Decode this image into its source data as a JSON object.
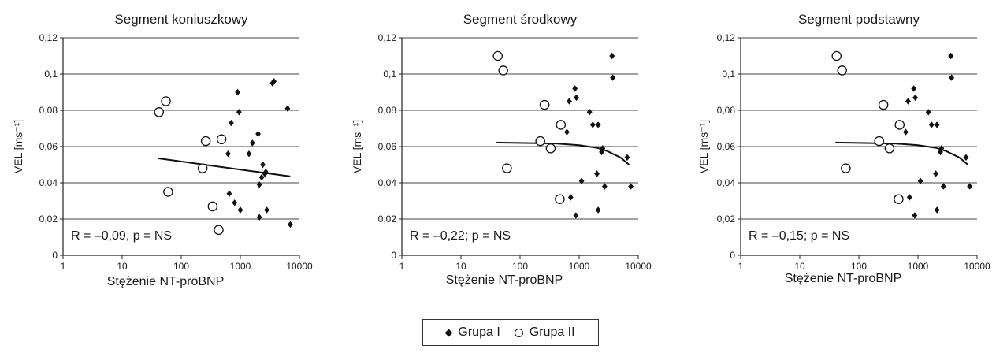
{
  "chart_data": [
    {
      "type": "scatter",
      "title": "Segment koniuszkowy",
      "xlabel": "Stężenie NT-proBNP",
      "ylabel": "VEL [ms⁻¹]",
      "xscale": "log",
      "xlim": [
        1,
        10000
      ],
      "ylim": [
        0,
        0.12
      ],
      "xticks": [
        "1",
        "10",
        "100",
        "1000",
        "10000"
      ],
      "yticks": [
        "0",
        "0,02",
        "0,04",
        "0,06",
        "0,08",
        "0,1",
        "0,12"
      ],
      "grid": "horizontal",
      "annotation": "R = –0,09, p = NS",
      "series": [
        {
          "name": "Grupa I",
          "marker": "diamond",
          "points": [
            [
              650,
              0.034
            ],
            [
              900,
              0.09
            ],
            [
              950,
              0.079
            ],
            [
              800,
              0.029
            ],
            [
              1000,
              0.025
            ],
            [
              620,
              0.056
            ],
            [
              700,
              0.073
            ],
            [
              1400,
              0.056
            ],
            [
              1600,
              0.062
            ],
            [
              2000,
              0.067
            ],
            [
              2100,
              0.039
            ],
            [
              2300,
              0.043
            ],
            [
              2400,
              0.05
            ],
            [
              2600,
              0.045
            ],
            [
              2700,
              0.046
            ],
            [
              2100,
              0.021
            ],
            [
              2800,
              0.025
            ],
            [
              3500,
              0.095
            ],
            [
              3700,
              0.096
            ],
            [
              6300,
              0.081
            ],
            [
              7000,
              0.017
            ]
          ]
        },
        {
          "name": "Grupa II",
          "marker": "circle",
          "points": [
            [
              42,
              0.079
            ],
            [
              55,
              0.085
            ],
            [
              60,
              0.035
            ],
            [
              230,
              0.048
            ],
            [
              260,
              0.063
            ],
            [
              340,
              0.027
            ],
            [
              430,
              0.014
            ],
            [
              480,
              0.064
            ]
          ]
        }
      ],
      "trend": [
        [
          40,
          0.0535
        ],
        [
          7000,
          0.0435
        ]
      ]
    },
    {
      "type": "scatter",
      "title": "Segment środkowy",
      "xlabel": "Stężenie NT-proBNP",
      "ylabel": "VEL [ms⁻¹]",
      "xscale": "log",
      "xlim": [
        1,
        10000
      ],
      "ylim": [
        0,
        0.12
      ],
      "xticks": [
        "1",
        "10",
        "100",
        "1000",
        "10000"
      ],
      "yticks": [
        "0",
        "0,02",
        "0,04",
        "0,06",
        "0,08",
        "0,1",
        "0,12"
      ],
      "grid": "horizontal",
      "annotation": "R = –0,22; p = NS",
      "series": [
        {
          "name": "Grupa I",
          "marker": "diamond",
          "points": [
            [
              620,
              0.068
            ],
            [
              680,
              0.085
            ],
            [
              720,
              0.032
            ],
            [
              850,
              0.092
            ],
            [
              900,
              0.087
            ],
            [
              880,
              0.022
            ],
            [
              1100,
              0.041
            ],
            [
              1500,
              0.079
            ],
            [
              1700,
              0.072
            ],
            [
              2100,
              0.072
            ],
            [
              2000,
              0.045
            ],
            [
              2100,
              0.025
            ],
            [
              2400,
              0.057
            ],
            [
              2500,
              0.059
            ],
            [
              2700,
              0.038
            ],
            [
              3600,
              0.11
            ],
            [
              3700,
              0.098
            ],
            [
              6500,
              0.054
            ],
            [
              7500,
              0.038
            ]
          ]
        },
        {
          "name": "Grupa II",
          "marker": "circle",
          "points": [
            [
              42,
              0.11
            ],
            [
              52,
              0.102
            ],
            [
              60,
              0.048
            ],
            [
              220,
              0.063
            ],
            [
              260,
              0.083
            ],
            [
              330,
              0.059
            ],
            [
              470,
              0.031
            ],
            [
              490,
              0.072
            ]
          ]
        }
      ],
      "trend": [
        [
          40,
          0.0622
        ],
        [
          400,
          0.0617
        ],
        [
          1000,
          0.0608
        ],
        [
          2000,
          0.0593
        ],
        [
          3000,
          0.0575
        ],
        [
          5000,
          0.054
        ],
        [
          7000,
          0.05
        ]
      ]
    },
    {
      "type": "scatter",
      "title": "Segment podstawny",
      "xlabel": "Stężenie NT-proBNP",
      "ylabel": "VEL [ms⁻¹]",
      "xscale": "log",
      "xlim": [
        1,
        10000
      ],
      "ylim": [
        0,
        0.12
      ],
      "xticks": [
        "1",
        "10",
        "100",
        "1000",
        "10000"
      ],
      "yticks": [
        "0",
        "0,02",
        "0,04",
        "0,06",
        "0,08",
        "0,1",
        "0,12"
      ],
      "grid": "horizontal",
      "annotation": "R = –0,15; p = NS",
      "series": [
        {
          "name": "Grupa I",
          "marker": "diamond",
          "points": [
            [
              620,
              0.068
            ],
            [
              680,
              0.085
            ],
            [
              720,
              0.032
            ],
            [
              850,
              0.092
            ],
            [
              900,
              0.087
            ],
            [
              880,
              0.022
            ],
            [
              1100,
              0.041
            ],
            [
              1500,
              0.079
            ],
            [
              1700,
              0.072
            ],
            [
              2100,
              0.072
            ],
            [
              2000,
              0.045
            ],
            [
              2100,
              0.025
            ],
            [
              2400,
              0.057
            ],
            [
              2500,
              0.059
            ],
            [
              2700,
              0.038
            ],
            [
              3600,
              0.11
            ],
            [
              3700,
              0.098
            ],
            [
              6500,
              0.054
            ],
            [
              7500,
              0.038
            ]
          ]
        },
        {
          "name": "Grupa II",
          "marker": "circle",
          "points": [
            [
              42,
              0.11
            ],
            [
              52,
              0.102
            ],
            [
              60,
              0.048
            ],
            [
              220,
              0.063
            ],
            [
              260,
              0.083
            ],
            [
              330,
              0.059
            ],
            [
              470,
              0.031
            ],
            [
              490,
              0.072
            ]
          ]
        }
      ],
      "trend": [
        [
          40,
          0.0622
        ],
        [
          400,
          0.0617
        ],
        [
          1000,
          0.0608
        ],
        [
          2000,
          0.0593
        ],
        [
          3000,
          0.0575
        ],
        [
          5000,
          0.054
        ],
        [
          7000,
          0.05
        ]
      ]
    }
  ],
  "legend": {
    "items": [
      {
        "label": "Grupa I",
        "marker": "diamond"
      },
      {
        "label": "Grupa II",
        "marker": "circle"
      }
    ]
  }
}
